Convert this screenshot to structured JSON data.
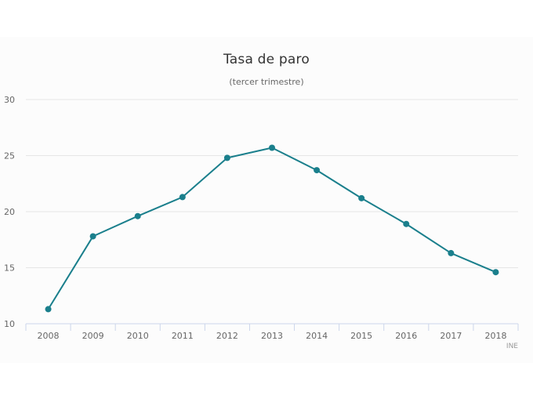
{
  "chart_data": {
    "type": "line",
    "title": "Tasa de paro",
    "subtitle": "(tercer trimestre)",
    "xlabel": "",
    "ylabel": "",
    "categories": [
      "2008",
      "2009",
      "2010",
      "2011",
      "2012",
      "2013",
      "2014",
      "2015",
      "2016",
      "2017",
      "2018"
    ],
    "series": [
      {
        "name": "Tasa de paro",
        "color": "#1a7f8c",
        "values": [
          11.3,
          17.8,
          19.6,
          21.3,
          24.8,
          25.7,
          23.7,
          21.2,
          18.9,
          16.3,
          14.6
        ]
      }
    ],
    "ylim": [
      10,
      30
    ],
    "yticks": [
      10,
      15,
      20,
      25,
      30
    ],
    "grid": true,
    "legend": "none",
    "credit": "INE"
  },
  "colors": {
    "line": "#1a7f8c",
    "grid": "#e6e6e6",
    "axis": "#ccd6eb",
    "text": "#666666"
  }
}
